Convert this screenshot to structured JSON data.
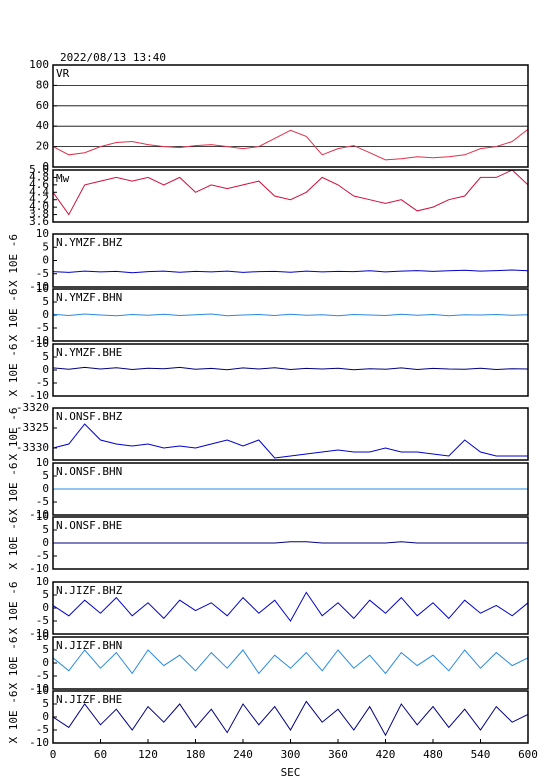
{
  "title": "2022/08/13 13:40",
  "chart_data": [
    {
      "type": "line",
      "title": "VR",
      "xlim": [
        0,
        600
      ],
      "ylim": [
        0,
        100
      ],
      "yticks": [
        0,
        20,
        40,
        60,
        80,
        100
      ],
      "grid": true,
      "x": [
        0,
        20,
        40,
        60,
        80,
        100,
        120,
        140,
        160,
        180,
        200,
        220,
        240,
        260,
        280,
        300,
        320,
        340,
        360,
        380,
        400,
        420,
        440,
        460,
        480,
        500,
        520,
        540,
        560,
        580,
        600
      ],
      "series": [
        {
          "color": "#e0304a",
          "values": [
            20,
            12,
            14,
            20,
            24,
            25,
            22,
            20,
            19,
            21,
            22,
            20,
            18,
            20,
            28,
            36,
            30,
            12,
            18,
            21,
            14,
            7,
            8,
            10,
            9,
            10,
            12,
            18,
            20,
            25,
            37
          ]
        }
      ]
    },
    {
      "type": "line",
      "title": "Mw",
      "xlim": [
        0,
        600
      ],
      "ylim": [
        3.6,
        5.0
      ],
      "yticks": [
        3.6,
        3.8,
        {
          "value": 4.0,
          "label": "4.0"
        },
        4.2,
        4.4,
        4.6,
        4.8,
        {
          "value": 5.0,
          "label": "5.0"
        }
      ],
      "grid": false,
      "x": [
        0,
        20,
        40,
        60,
        80,
        100,
        120,
        140,
        160,
        180,
        200,
        220,
        240,
        260,
        280,
        300,
        320,
        340,
        360,
        380,
        400,
        420,
        440,
        460,
        480,
        500,
        520,
        540,
        560,
        580,
        600
      ],
      "series": [
        {
          "color": "#d0103a",
          "values": [
            4.4,
            3.8,
            4.6,
            4.7,
            4.8,
            4.7,
            4.8,
            4.6,
            4.8,
            4.4,
            4.6,
            4.5,
            4.6,
            4.7,
            4.3,
            4.2,
            4.4,
            4.8,
            4.6,
            4.3,
            4.2,
            4.1,
            4.2,
            3.9,
            4.0,
            4.2,
            4.3,
            4.8,
            4.8,
            5.0,
            4.6
          ]
        }
      ]
    },
    {
      "type": "line",
      "title": "N.YMZF.BHZ",
      "ylabel": "X 10E -6",
      "xlim": [
        0,
        600
      ],
      "ylim": [
        -10,
        10
      ],
      "yticks": [
        -10,
        -5,
        0,
        5,
        10
      ],
      "grid": false,
      "x": [
        0,
        20,
        40,
        60,
        80,
        100,
        120,
        140,
        160,
        180,
        200,
        220,
        240,
        260,
        280,
        300,
        320,
        340,
        360,
        380,
        400,
        420,
        440,
        460,
        480,
        500,
        520,
        540,
        560,
        580,
        600
      ],
      "series": [
        {
          "color": "#0000cc",
          "values": [
            -4.2,
            -4.5,
            -4,
            -4.3,
            -4.1,
            -4.6,
            -4.2,
            -4,
            -4.4,
            -4.1,
            -4.3,
            -4.0,
            -4.5,
            -4.2,
            -4.1,
            -4.4,
            -4.0,
            -4.3,
            -4.1,
            -4.2,
            -3.9,
            -4.3,
            -4.0,
            -3.8,
            -4.1,
            -3.9,
            -3.7,
            -4.0,
            -3.8,
            -3.6,
            -3.9
          ]
        }
      ]
    },
    {
      "type": "line",
      "title": "N.YMZF.BHN",
      "ylabel": "X 10E -6",
      "xlim": [
        0,
        600
      ],
      "ylim": [
        -10,
        10
      ],
      "yticks": [
        -10,
        -5,
        0,
        5,
        10
      ],
      "grid": false,
      "x": [
        0,
        20,
        40,
        60,
        80,
        100,
        120,
        140,
        160,
        180,
        200,
        220,
        240,
        260,
        280,
        300,
        320,
        340,
        360,
        380,
        400,
        420,
        440,
        460,
        480,
        500,
        520,
        540,
        560,
        580,
        600
      ],
      "series": [
        {
          "color": "#2a8ae0",
          "values": [
            0.3,
            -0.2,
            0.4,
            0,
            -0.3,
            0.2,
            -0.1,
            0.3,
            -0.2,
            0.1,
            0.4,
            -0.3,
            0,
            0.2,
            -0.2,
            0.3,
            -0.1,
            0.1,
            -0.3,
            0.2,
            0,
            -0.2,
            0.3,
            -0.1,
            0.2,
            -0.3,
            0.1,
            0,
            0.2,
            -0.1,
            0.1
          ]
        }
      ]
    },
    {
      "type": "line",
      "title": "N.YMZF.BHE",
      "ylabel": "X 10E -6",
      "xlim": [
        0,
        600
      ],
      "ylim": [
        -10,
        10
      ],
      "yticks": [
        -10,
        -5,
        0,
        5,
        10
      ],
      "grid": false,
      "x": [
        0,
        20,
        40,
        60,
        80,
        100,
        120,
        140,
        160,
        180,
        200,
        220,
        240,
        260,
        280,
        300,
        320,
        340,
        360,
        380,
        400,
        420,
        440,
        460,
        480,
        500,
        520,
        540,
        560,
        580,
        600
      ],
      "series": [
        {
          "color": "#000080",
          "values": [
            0.8,
            0.3,
            1,
            0.4,
            0.9,
            0.2,
            0.7,
            0.5,
            1,
            0.3,
            0.6,
            0.1,
            0.8,
            0.4,
            0.9,
            0.2,
            0.6,
            0.4,
            0.7,
            0.1,
            0.5,
            0.3,
            0.8,
            0.2,
            0.6,
            0.4,
            0.3,
            0.7,
            0.2,
            0.5,
            0.4
          ]
        }
      ]
    },
    {
      "type": "line",
      "title": "N.ONSF.BHZ",
      "ylabel": "X 10E -6",
      "xlim": [
        0,
        600
      ],
      "ylim": [
        -3333,
        -3320
      ],
      "yticks": [
        -3330,
        -3325,
        -3320
      ],
      "grid": false,
      "x": [
        0,
        20,
        40,
        60,
        80,
        100,
        120,
        140,
        160,
        180,
        200,
        220,
        240,
        260,
        280,
        300,
        320,
        340,
        360,
        380,
        400,
        420,
        440,
        460,
        480,
        500,
        520,
        540,
        560,
        580,
        600
      ],
      "series": [
        {
          "color": "#0000cc",
          "values": [
            -3330,
            -3329,
            -3324,
            -3328,
            -3329,
            -3329.5,
            -3329,
            -3330,
            -3329.5,
            -3330,
            -3329,
            -3328,
            -3329.5,
            -3328,
            -3332.5,
            -3332,
            -3331.5,
            -3331,
            -3330.5,
            -3331,
            -3331,
            -3330,
            -3331,
            -3331,
            -3331.5,
            -3332,
            -3328,
            -3331,
            -3332,
            -3332,
            -3332
          ]
        }
      ]
    },
    {
      "type": "line",
      "title": "N.ONSF.BHN",
      "ylabel": "X 10E -6",
      "xlim": [
        0,
        600
      ],
      "ylim": [
        -10,
        10
      ],
      "yticks": [
        -10,
        -5,
        0,
        5,
        10
      ],
      "grid": false,
      "x": [
        0,
        20,
        40,
        60,
        80,
        100,
        120,
        140,
        160,
        180,
        200,
        220,
        240,
        260,
        280,
        300,
        320,
        340,
        360,
        380,
        400,
        420,
        440,
        460,
        480,
        500,
        520,
        540,
        560,
        580,
        600
      ],
      "series": [
        {
          "color": "#2a8ae0",
          "values": [
            0,
            0,
            0,
            0,
            0,
            0,
            0,
            0,
            0,
            0,
            0,
            0,
            0,
            0,
            0,
            0,
            0,
            0,
            0,
            0,
            0,
            0,
            0,
            0,
            0,
            0,
            0,
            0,
            0,
            0,
            0
          ]
        }
      ]
    },
    {
      "type": "line",
      "title": "N.ONSF.BHE",
      "ylabel": "X 10E -6",
      "xlim": [
        0,
        600
      ],
      "ylim": [
        -10,
        10
      ],
      "yticks": [
        -10,
        -5,
        0,
        5,
        10
      ],
      "grid": false,
      "x": [
        0,
        20,
        40,
        60,
        80,
        100,
        120,
        140,
        160,
        180,
        200,
        220,
        240,
        260,
        280,
        300,
        320,
        340,
        360,
        380,
        400,
        420,
        440,
        460,
        480,
        500,
        520,
        540,
        560,
        580,
        600
      ],
      "series": [
        {
          "color": "#000080",
          "values": [
            0,
            0,
            0,
            0,
            0,
            0,
            0,
            0,
            0,
            0,
            0,
            0,
            0,
            0,
            0,
            0.5,
            0.5,
            0,
            0,
            0,
            0,
            0,
            0.5,
            0,
            0,
            0,
            0,
            0,
            0,
            0,
            0
          ]
        }
      ]
    },
    {
      "type": "line",
      "title": "N.JIZF.BHZ",
      "ylabel": "X 10E -6",
      "xlim": [
        0,
        600
      ],
      "ylim": [
        -10,
        10
      ],
      "yticks": [
        -10,
        -5,
        0,
        5,
        10
      ],
      "grid": false,
      "x": [
        0,
        20,
        40,
        60,
        80,
        100,
        120,
        140,
        160,
        180,
        200,
        220,
        240,
        260,
        280,
        300,
        320,
        340,
        360,
        380,
        400,
        420,
        440,
        460,
        480,
        500,
        520,
        540,
        560,
        580,
        600
      ],
      "series": [
        {
          "color": "#0000cc",
          "values": [
            1,
            -3,
            3,
            -2,
            4,
            -3,
            2,
            -4,
            3,
            -1,
            2,
            -3,
            4,
            -2,
            3,
            -5,
            6,
            -3,
            2,
            -4,
            3,
            -2,
            4,
            -3,
            2,
            -4,
            3,
            -2,
            1,
            -3,
            2
          ]
        }
      ]
    },
    {
      "type": "line",
      "title": "N.JIZF.BHN",
      "ylabel": "X 10E -6",
      "xlim": [
        0,
        600
      ],
      "ylim": [
        -10,
        10
      ],
      "yticks": [
        -10,
        -5,
        0,
        5,
        10
      ],
      "grid": false,
      "x": [
        0,
        20,
        40,
        60,
        80,
        100,
        120,
        140,
        160,
        180,
        200,
        220,
        240,
        260,
        280,
        300,
        320,
        340,
        360,
        380,
        400,
        420,
        440,
        460,
        480,
        500,
        520,
        540,
        560,
        580,
        600
      ],
      "series": [
        {
          "color": "#2a8ae0",
          "values": [
            2,
            -3,
            5,
            -2,
            4,
            -4,
            5,
            -1,
            3,
            -3,
            4,
            -2,
            5,
            -4,
            3,
            -2,
            4,
            -3,
            5,
            -2,
            3,
            -4,
            4,
            -1,
            3,
            -3,
            5,
            -2,
            4,
            -1,
            2
          ]
        }
      ]
    },
    {
      "type": "line",
      "title": "N.JIZF.BHE",
      "ylabel": "X 10E -6",
      "xlabel": "SEC",
      "xlim": [
        0,
        600
      ],
      "xticks": [
        0,
        60,
        120,
        180,
        240,
        300,
        360,
        420,
        480,
        540,
        600
      ],
      "ylim": [
        -10,
        10
      ],
      "yticks": [
        -10,
        -5,
        0,
        5,
        10
      ],
      "grid": false,
      "x": [
        0,
        20,
        40,
        60,
        80,
        100,
        120,
        140,
        160,
        180,
        200,
        220,
        240,
        260,
        280,
        300,
        320,
        340,
        360,
        380,
        400,
        420,
        440,
        460,
        480,
        500,
        520,
        540,
        560,
        580,
        600
      ],
      "series": [
        {
          "color": "#000080",
          "values": [
            0,
            -4,
            5,
            -3,
            3,
            -5,
            4,
            -2,
            5,
            -4,
            3,
            -6,
            5,
            -3,
            4,
            -5,
            6,
            -2,
            3,
            -5,
            4,
            -7,
            5,
            -3,
            4,
            -4,
            3,
            -5,
            4,
            -2,
            1
          ]
        }
      ]
    }
  ]
}
